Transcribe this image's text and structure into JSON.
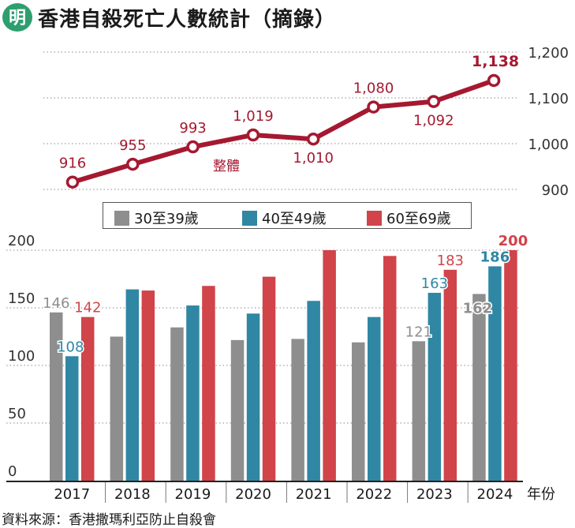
{
  "header": {
    "title": "香港自殺死亡人數統計（摘錄）",
    "logo_text": "明",
    "logo_color": "#2f9e6f"
  },
  "source": "資料來源：香港撒瑪利亞防止自殺會",
  "colors": {
    "total_line": "#a51930",
    "age_30_39": "#8e8e8e",
    "age_40_49": "#2f87a3",
    "age_60_69": "#d0444a"
  },
  "chart_data": [
    {
      "type": "line",
      "title": "",
      "x": [
        "2017",
        "2018",
        "2019",
        "2020",
        "2021",
        "2022",
        "2023",
        "2024"
      ],
      "series": [
        {
          "name": "整體",
          "values": [
            916,
            955,
            993,
            1019,
            1010,
            1080,
            1092,
            1138
          ],
          "labels": [
            "916",
            "955",
            "993",
            "1,019",
            "1,010",
            "1,080",
            "1,092",
            "1,138"
          ]
        }
      ],
      "ylim": [
        900,
        1200
      ],
      "yticks": [
        900,
        1000,
        1100,
        1200
      ],
      "ytick_labels": [
        "900",
        "1,000",
        "1,100",
        "1,200"
      ],
      "grid": true,
      "axis_side": "right"
    },
    {
      "type": "bar",
      "categories": [
        "2017",
        "2018",
        "2019",
        "2020",
        "2021",
        "2022",
        "2023",
        "2024"
      ],
      "series": [
        {
          "name": "30至39歲",
          "values": [
            146,
            125,
            133,
            122,
            123,
            120,
            121,
            162
          ]
        },
        {
          "name": "40至49歲",
          "values": [
            108,
            166,
            152,
            145,
            156,
            142,
            163,
            186
          ]
        },
        {
          "name": "60至69歲",
          "values": [
            142,
            165,
            169,
            177,
            200,
            195,
            183,
            200
          ]
        }
      ],
      "data_labels": [
        {
          "category": "2017",
          "series": 0,
          "text": "146"
        },
        {
          "category": "2017",
          "series": 1,
          "text": "108"
        },
        {
          "category": "2017",
          "series": 2,
          "text": "142"
        },
        {
          "category": "2023",
          "series": 0,
          "text": "121"
        },
        {
          "category": "2023",
          "series": 1,
          "text": "163"
        },
        {
          "category": "2023",
          "series": 2,
          "text": "183"
        },
        {
          "category": "2024",
          "series": 0,
          "text": "162"
        },
        {
          "category": "2024",
          "series": 1,
          "text": "186"
        },
        {
          "category": "2024",
          "series": 2,
          "text": "200"
        }
      ],
      "xlabel": "年份",
      "ylabel": "",
      "ylim": [
        0,
        200
      ],
      "yticks": [
        0,
        50,
        100,
        150,
        200
      ],
      "ytick_labels": [
        "0",
        "50",
        "100",
        "150",
        "200"
      ],
      "grid": true,
      "legend_position": "top"
    }
  ]
}
